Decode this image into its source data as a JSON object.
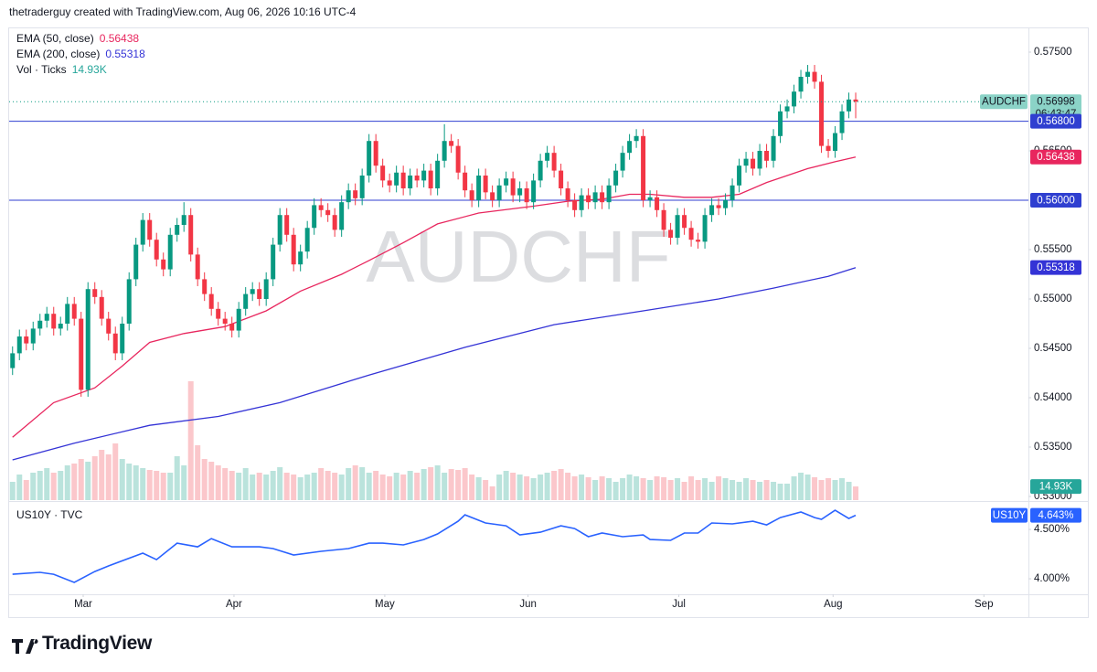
{
  "header": "thetraderguy created with TradingView.com, Aug 06, 2026 10:16 UTC-4",
  "footer": {
    "brand": "TradingView"
  },
  "chart_data": [
    {
      "type": "candlestick",
      "symbol": "AUDCHF",
      "countdown": "06:43:47",
      "up_color": "#089981",
      "down_color": "#f23645",
      "last_color": "#8bd3c7",
      "xlim": [
        -0.5,
        148.2
      ],
      "xticks": [
        {
          "value": 10.3,
          "label": "Mar"
        },
        {
          "value": 32.3,
          "label": "Apr"
        },
        {
          "value": 54.3,
          "label": "May"
        },
        {
          "value": 75.2,
          "label": "Jun"
        },
        {
          "value": 97.2,
          "label": "Jul"
        },
        {
          "value": 119.7,
          "label": "Aug"
        },
        {
          "value": 141.7,
          "label": "Sep"
        }
      ],
      "ylim": [
        0.52963,
        0.5775
      ],
      "yticks": [
        {
          "value": 0.575,
          "label": "0.57500"
        },
        {
          "value": 0.565,
          "label": "0.56500"
        },
        {
          "value": 0.555,
          "label": "0.55500"
        },
        {
          "value": 0.55,
          "label": "0.55000"
        },
        {
          "value": 0.545,
          "label": "0.54500"
        },
        {
          "value": 0.54,
          "label": "0.54000"
        },
        {
          "value": 0.535,
          "label": "0.53500"
        },
        {
          "value": 0.53,
          "label": "0.53000"
        }
      ],
      "levels": [
        {
          "value": 0.568,
          "label": "0.56800"
        },
        {
          "value": 0.56,
          "label": "0.56000"
        }
      ],
      "level_color": "#2f3fd0",
      "candles": [
        [
          0.543,
          0.5452,
          0.5423,
          0.5445
        ],
        [
          0.5445,
          0.5469,
          0.5438,
          0.5462
        ],
        [
          0.5462,
          0.5469,
          0.5448,
          0.5455
        ],
        [
          0.5455,
          0.5477,
          0.5448,
          0.547
        ],
        [
          0.547,
          0.5485,
          0.5463,
          0.5478
        ],
        [
          0.5478,
          0.5492,
          0.5471,
          0.5485
        ],
        [
          0.5485,
          0.5492,
          0.5463,
          0.547
        ],
        [
          0.547,
          0.5482,
          0.5463,
          0.5475
        ],
        [
          0.5475,
          0.5502,
          0.5468,
          0.5495
        ],
        [
          0.5495,
          0.5502,
          0.5473,
          0.548
        ],
        [
          0.548,
          0.5487,
          0.5401,
          0.5408
        ],
        [
          0.5408,
          0.5517,
          0.5401,
          0.551
        ],
        [
          0.551,
          0.5517,
          0.5495,
          0.5502
        ],
        [
          0.5502,
          0.5509,
          0.5473,
          0.548
        ],
        [
          0.548,
          0.5487,
          0.5458,
          0.5465
        ],
        [
          0.5465,
          0.5472,
          0.5438,
          0.5445
        ],
        [
          0.5445,
          0.5482,
          0.5438,
          0.5475
        ],
        [
          0.5475,
          0.5527,
          0.5468,
          0.552
        ],
        [
          0.552,
          0.5562,
          0.5513,
          0.5555
        ],
        [
          0.5555,
          0.5587,
          0.5548,
          0.558
        ],
        [
          0.558,
          0.5587,
          0.5553,
          0.556
        ],
        [
          0.556,
          0.5567,
          0.5533,
          0.554
        ],
        [
          0.554,
          0.5547,
          0.5523,
          0.553
        ],
        [
          0.553,
          0.5572,
          0.5523,
          0.5565
        ],
        [
          0.5565,
          0.5582,
          0.5558,
          0.5575
        ],
        [
          0.5575,
          0.5598,
          0.5568,
          0.5585
        ],
        [
          0.5585,
          0.5592,
          0.5538,
          0.5545
        ],
        [
          0.5545,
          0.5552,
          0.5513,
          0.552
        ],
        [
          0.552,
          0.5527,
          0.5498,
          0.5505
        ],
        [
          0.5505,
          0.5512,
          0.5483,
          0.549
        ],
        [
          0.549,
          0.5497,
          0.5473,
          0.548
        ],
        [
          0.548,
          0.5487,
          0.5468,
          0.5475
        ],
        [
          0.5475,
          0.5482,
          0.5461,
          0.5468
        ],
        [
          0.5468,
          0.5497,
          0.5461,
          0.549
        ],
        [
          0.549,
          0.5512,
          0.5483,
          0.5505
        ],
        [
          0.5505,
          0.5517,
          0.5498,
          0.551
        ],
        [
          0.551,
          0.5517,
          0.5493,
          0.55
        ],
        [
          0.55,
          0.5527,
          0.5493,
          0.552
        ],
        [
          0.552,
          0.5562,
          0.5513,
          0.5555
        ],
        [
          0.5555,
          0.5592,
          0.5548,
          0.5585
        ],
        [
          0.5585,
          0.5592,
          0.5558,
          0.5565
        ],
        [
          0.5565,
          0.5572,
          0.5528,
          0.5535
        ],
        [
          0.5535,
          0.5555,
          0.5528,
          0.5548
        ],
        [
          0.5548,
          0.5579,
          0.5541,
          0.5572
        ],
        [
          0.5572,
          0.5602,
          0.5565,
          0.5595
        ],
        [
          0.5595,
          0.5602,
          0.5583,
          0.559
        ],
        [
          0.559,
          0.5597,
          0.5578,
          0.5585
        ],
        [
          0.5585,
          0.5592,
          0.5563,
          0.557
        ],
        [
          0.557,
          0.5605,
          0.5563,
          0.5598
        ],
        [
          0.5598,
          0.5617,
          0.5591,
          0.561
        ],
        [
          0.561,
          0.5617,
          0.5595,
          0.5602
        ],
        [
          0.5602,
          0.5632,
          0.5595,
          0.5625
        ],
        [
          0.5625,
          0.5667,
          0.5618,
          0.566
        ],
        [
          0.566,
          0.5667,
          0.5628,
          0.5635
        ],
        [
          0.5635,
          0.5642,
          0.5613,
          0.562
        ],
        [
          0.562,
          0.5627,
          0.5608,
          0.5615
        ],
        [
          0.5615,
          0.5635,
          0.5608,
          0.5628
        ],
        [
          0.5628,
          0.5635,
          0.5605,
          0.5612
        ],
        [
          0.5612,
          0.5632,
          0.5605,
          0.5625
        ],
        [
          0.5625,
          0.5632,
          0.5613,
          0.562
        ],
        [
          0.562,
          0.5637,
          0.5613,
          0.563
        ],
        [
          0.563,
          0.5637,
          0.5605,
          0.5612
        ],
        [
          0.5612,
          0.5647,
          0.5605,
          0.564
        ],
        [
          0.564,
          0.5677,
          0.5633,
          0.566
        ],
        [
          0.566,
          0.5667,
          0.5648,
          0.5655
        ],
        [
          0.5655,
          0.5662,
          0.5621,
          0.5628
        ],
        [
          0.5628,
          0.5635,
          0.5603,
          0.561
        ],
        [
          0.561,
          0.5617,
          0.5593,
          0.56
        ],
        [
          0.56,
          0.5632,
          0.5593,
          0.5625
        ],
        [
          0.5625,
          0.5632,
          0.5601,
          0.5608
        ],
        [
          0.5608,
          0.5615,
          0.5593,
          0.56
        ],
        [
          0.56,
          0.5622,
          0.5593,
          0.5615
        ],
        [
          0.5615,
          0.5629,
          0.5608,
          0.5622
        ],
        [
          0.5622,
          0.5629,
          0.5598,
          0.5605
        ],
        [
          0.5605,
          0.5619,
          0.5598,
          0.5612
        ],
        [
          0.5612,
          0.5619,
          0.5591,
          0.5598
        ],
        [
          0.5598,
          0.5627,
          0.5591,
          0.562
        ],
        [
          0.562,
          0.5647,
          0.5613,
          0.564
        ],
        [
          0.564,
          0.5655,
          0.5633,
          0.5648
        ],
        [
          0.5648,
          0.5655,
          0.5623,
          0.563
        ],
        [
          0.563,
          0.5637,
          0.5605,
          0.5612
        ],
        [
          0.5612,
          0.5619,
          0.5593,
          0.56
        ],
        [
          0.56,
          0.5607,
          0.5583,
          0.559
        ],
        [
          0.559,
          0.5612,
          0.5583,
          0.5605
        ],
        [
          0.5605,
          0.5612,
          0.5591,
          0.5598
        ],
        [
          0.5598,
          0.5615,
          0.5591,
          0.5608
        ],
        [
          0.5608,
          0.5615,
          0.5591,
          0.5598
        ],
        [
          0.5598,
          0.5622,
          0.5591,
          0.5615
        ],
        [
          0.5615,
          0.5637,
          0.5608,
          0.563
        ],
        [
          0.563,
          0.5655,
          0.5623,
          0.5648
        ],
        [
          0.5648,
          0.5667,
          0.5641,
          0.566
        ],
        [
          0.566,
          0.5672,
          0.5653,
          0.5665
        ],
        [
          0.5665,
          0.5672,
          0.5593,
          0.56
        ],
        [
          0.56,
          0.561,
          0.5593,
          0.5603
        ],
        [
          0.5603,
          0.561,
          0.5583,
          0.559
        ],
        [
          0.559,
          0.5597,
          0.5563,
          0.557
        ],
        [
          0.557,
          0.5577,
          0.5555,
          0.5562
        ],
        [
          0.5562,
          0.5592,
          0.5555,
          0.5585
        ],
        [
          0.5585,
          0.5592,
          0.5565,
          0.5572
        ],
        [
          0.5572,
          0.5579,
          0.5553,
          0.556
        ],
        [
          0.556,
          0.5567,
          0.5551,
          0.5558
        ],
        [
          0.5558,
          0.5592,
          0.5551,
          0.5585
        ],
        [
          0.5585,
          0.5602,
          0.5578,
          0.5595
        ],
        [
          0.5595,
          0.5602,
          0.5585,
          0.5592
        ],
        [
          0.5592,
          0.5607,
          0.5585,
          0.56
        ],
        [
          0.56,
          0.5622,
          0.5593,
          0.5615
        ],
        [
          0.5615,
          0.5642,
          0.5608,
          0.5635
        ],
        [
          0.5635,
          0.5649,
          0.5628,
          0.5642
        ],
        [
          0.5642,
          0.5649,
          0.5625,
          0.5632
        ],
        [
          0.5632,
          0.5657,
          0.5625,
          0.565
        ],
        [
          0.565,
          0.5657,
          0.5633,
          0.564
        ],
        [
          0.564,
          0.5672,
          0.5633,
          0.5665
        ],
        [
          0.5665,
          0.5697,
          0.5658,
          0.569
        ],
        [
          0.569,
          0.5702,
          0.5683,
          0.5695
        ],
        [
          0.5695,
          0.5717,
          0.5688,
          0.571
        ],
        [
          0.571,
          0.5732,
          0.5703,
          0.5725
        ],
        [
          0.5725,
          0.5737,
          0.5718,
          0.573
        ],
        [
          0.573,
          0.5737,
          0.5713,
          0.572
        ],
        [
          0.572,
          0.5727,
          0.5648,
          0.5655
        ],
        [
          0.5655,
          0.5662,
          0.5643,
          0.565
        ],
        [
          0.565,
          0.5675,
          0.5643,
          0.5668
        ],
        [
          0.5668,
          0.5697,
          0.5661,
          0.569
        ],
        [
          0.569,
          0.5709,
          0.5683,
          0.5702
        ],
        [
          0.5702,
          0.5709,
          0.5683,
          0.56998
        ]
      ],
      "overlays": [
        {
          "name": "EMA (50, close)",
          "color": "#e8265e",
          "x": [
            0,
            6,
            12,
            16,
            20,
            25,
            31,
            37,
            42,
            48,
            52,
            57,
            62,
            68,
            76,
            81,
            86,
            90,
            93,
            98,
            102,
            106,
            110,
            116,
            120,
            123
          ],
          "values": [
            0.536,
            0.5395,
            0.541,
            0.5432,
            0.5456,
            0.5465,
            0.5472,
            0.5488,
            0.5508,
            0.5525,
            0.5539,
            0.5557,
            0.5576,
            0.5587,
            0.5594,
            0.5599,
            0.5601,
            0.5606,
            0.5606,
            0.5603,
            0.5603,
            0.5606,
            0.5618,
            0.5632,
            0.5639,
            0.56438
          ]
        },
        {
          "name": "EMA (200, close)",
          "color": "#3433d6",
          "x": [
            0,
            9,
            20,
            30,
            39,
            52,
            66,
            79,
            92,
            103,
            111,
            119,
            123
          ],
          "values": [
            0.5337,
            0.5354,
            0.5372,
            0.5381,
            0.5395,
            0.5423,
            0.5451,
            0.5474,
            0.5488,
            0.55,
            0.5511,
            0.5523,
            0.55318
          ]
        }
      ],
      "volume": {
        "name": "Vol · Ticks",
        "color": "#26a69a",
        "ylim": [
          0,
          140000
        ],
        "last": {
          "value": 14930,
          "label": "14.93K"
        },
        "values": [
          20000,
          28000,
          22000,
          30000,
          32000,
          35000,
          30000,
          32000,
          38000,
          40000,
          45000,
          42000,
          48000,
          55000,
          50000,
          62000,
          45000,
          40000,
          38000,
          35000,
          33000,
          32000,
          30000,
          30000,
          48000,
          38000,
          130000,
          60000,
          45000,
          42000,
          38000,
          35000,
          32000,
          30000,
          35000,
          28000,
          30000,
          28000,
          32000,
          36000,
          30000,
          28000,
          25000,
          28000,
          30000,
          35000,
          32000,
          30000,
          28000,
          35000,
          38000,
          36000,
          30000,
          32000,
          28000,
          26000,
          30000,
          28000,
          32000,
          30000,
          34000,
          36000,
          38000,
          30000,
          34000,
          33000,
          35000,
          28000,
          25000,
          22000,
          15000,
          28000,
          32000,
          30000,
          28000,
          26000,
          24000,
          28000,
          30000,
          32000,
          34000,
          30000,
          26000,
          28000,
          25000,
          22000,
          26000,
          24000,
          20000,
          24000,
          28000,
          26000,
          24000,
          22000,
          26000,
          25000,
          22000,
          24000,
          20000,
          26000,
          22000,
          24000,
          20000,
          26000,
          24000,
          22000,
          20000,
          24000,
          22000,
          20000,
          22000,
          20000,
          18000,
          18000,
          26000,
          30000,
          28000,
          25000,
          22000,
          24000,
          22000,
          24000,
          20000,
          14930
        ]
      }
    },
    {
      "type": "line",
      "title": "US10Y · TVC",
      "symbol": "US10Y",
      "color": "#2962ff",
      "ylim": [
        3.843,
        4.769
      ],
      "yticks": [
        {
          "value": 4.5,
          "label": "4.500%"
        },
        {
          "value": 4.0,
          "label": "4.000%"
        }
      ],
      "last": {
        "value": 4.643,
        "label": "4.643%"
      },
      "x": [
        0,
        4,
        6,
        9,
        12,
        14,
        19,
        21,
        24,
        27,
        29,
        32,
        36,
        38,
        41,
        45,
        49,
        52,
        54,
        57,
        60,
        62,
        65,
        66,
        69,
        72,
        74,
        77,
        80,
        82,
        84,
        86,
        89,
        92,
        93,
        96,
        98,
        100,
        102,
        105,
        108,
        110,
        112,
        115,
        117,
        118,
        120,
        122,
        123
      ],
      "values": [
        4.046,
        4.065,
        4.046,
        3.963,
        4.074,
        4.13,
        4.26,
        4.194,
        4.361,
        4.324,
        4.407,
        4.324,
        4.324,
        4.306,
        4.241,
        4.278,
        4.306,
        4.361,
        4.361,
        4.343,
        4.398,
        4.454,
        4.583,
        4.648,
        4.565,
        4.537,
        4.444,
        4.472,
        4.537,
        4.509,
        4.426,
        4.463,
        4.426,
        4.444,
        4.398,
        4.389,
        4.463,
        4.463,
        4.565,
        4.556,
        4.583,
        4.546,
        4.62,
        4.676,
        4.62,
        4.602,
        4.694,
        4.611,
        4.643
      ]
    }
  ]
}
